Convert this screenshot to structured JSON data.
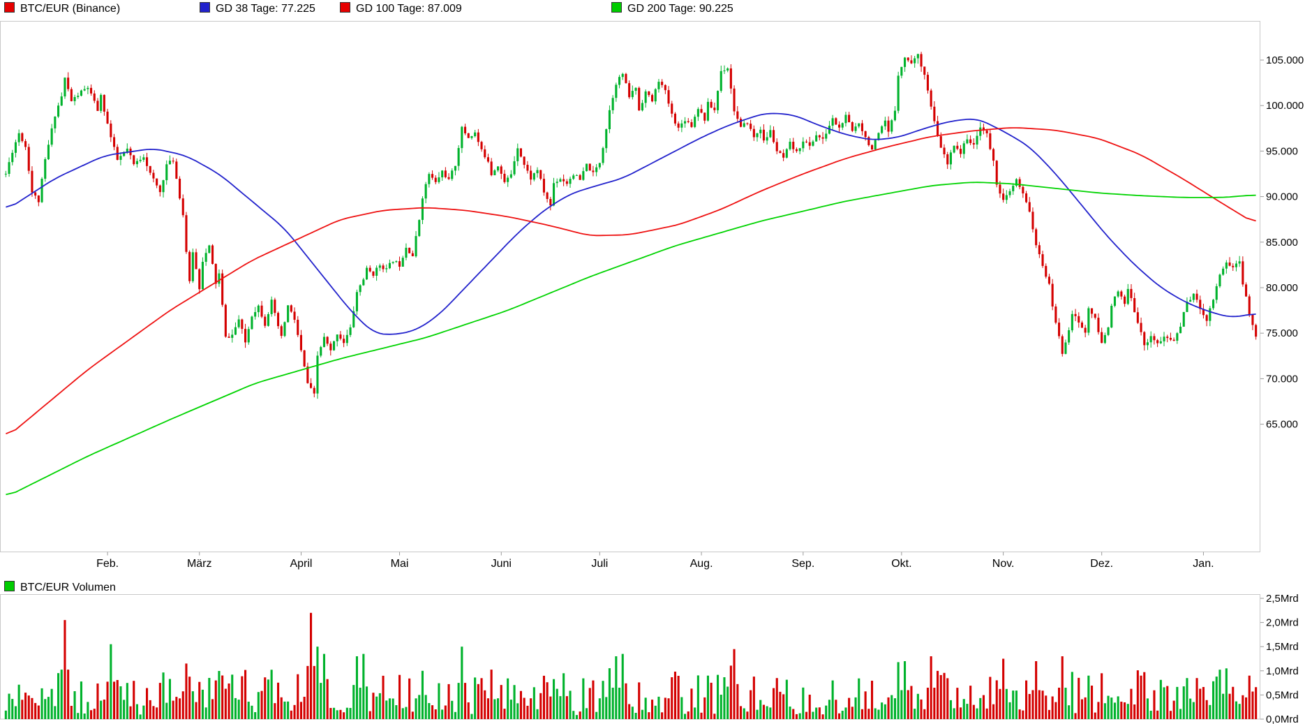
{
  "legend": {
    "items": [
      {
        "label": "BTC/EUR (Binance)",
        "swatch": "#e60000"
      },
      {
        "label": "GD 38 Tage: 77.225",
        "swatch": "#2222cc"
      },
      {
        "label": "GD 100 Tage: 87.009",
        "swatch": "#e60000"
      },
      {
        "label": "GD 200 Tage: 90.225",
        "swatch": "#00cc00"
      }
    ],
    "volume_label": "BTC/EUR Volumen",
    "volume_swatch": "#00cc00"
  },
  "chart_data": {
    "type": "candlestick",
    "title": "BTC/EUR (Binance)",
    "subtitle_mas": [
      "GD 38 Tage: 77.225",
      "GD 100 Tage: 87.009",
      "GD 200 Tage: 90.225"
    ],
    "price_unit_thousand_eur": true,
    "days_total": 382,
    "x_axis": {
      "month_labels": [
        "Feb.",
        "März",
        "April",
        "Mai",
        "Juni",
        "Juli",
        "Aug.",
        "Sep.",
        "Okt.",
        "Nov.",
        "Dez.",
        "Jan."
      ],
      "month_label_days": [
        31,
        59,
        90,
        120,
        151,
        181,
        212,
        243,
        273,
        304,
        334,
        365
      ]
    },
    "y_axis": {
      "tick_labels": [
        "105.000",
        "100.000",
        "95.000",
        "90.000",
        "85.000",
        "80.000",
        "75.000",
        "70.000",
        "65.000"
      ],
      "tick_values": [
        105,
        100,
        95,
        90,
        85,
        80,
        75,
        70,
        65
      ]
    },
    "price_path_anchors": [
      [
        0,
        92.5
      ],
      [
        2,
        95
      ],
      [
        4,
        97
      ],
      [
        6,
        95.5
      ],
      [
        8,
        90.5
      ],
      [
        10,
        89.5
      ],
      [
        12,
        94
      ],
      [
        15,
        99
      ],
      [
        17,
        101
      ],
      [
        18,
        103
      ],
      [
        20,
        100.5
      ],
      [
        23,
        101.5
      ],
      [
        25,
        102
      ],
      [
        28,
        99.5
      ],
      [
        29,
        101
      ],
      [
        32,
        96.5
      ],
      [
        34,
        94
      ],
      [
        37,
        95.2
      ],
      [
        39,
        93.5
      ],
      [
        42,
        94.5
      ],
      [
        44,
        92.5
      ],
      [
        47,
        90.5
      ],
      [
        49,
        93.5
      ],
      [
        51,
        94
      ],
      [
        52,
        92
      ],
      [
        54,
        88
      ],
      [
        55,
        84
      ],
      [
        56,
        80.5
      ],
      [
        57,
        84
      ],
      [
        59,
        80
      ],
      [
        60,
        83
      ],
      [
        62,
        84.5
      ],
      [
        64,
        80.5
      ],
      [
        65,
        81.5
      ],
      [
        67,
        74.5
      ],
      [
        69,
        74.8
      ],
      [
        71,
        76.5
      ],
      [
        73,
        74
      ],
      [
        75,
        77
      ],
      [
        77,
        78
      ],
      [
        79,
        76
      ],
      [
        81,
        78.5
      ],
      [
        82,
        77
      ],
      [
        84,
        74.5
      ],
      [
        86,
        78
      ],
      [
        88,
        76.5
      ],
      [
        90,
        73
      ],
      [
        92,
        69.5
      ],
      [
        93,
        68.8
      ],
      [
        94,
        68.2
      ],
      [
        95,
        72.5
      ],
      [
        97,
        74.5
      ],
      [
        99,
        73
      ],
      [
        101,
        75
      ],
      [
        103,
        74
      ],
      [
        105,
        75.5
      ],
      [
        107,
        79.5
      ],
      [
        109,
        81
      ],
      [
        110,
        82
      ],
      [
        112,
        81.5
      ],
      [
        114,
        82.5
      ],
      [
        116,
        82
      ],
      [
        118,
        83
      ],
      [
        120,
        82.5
      ],
      [
        122,
        84.5
      ],
      [
        124,
        83.5
      ],
      [
        126,
        87.5
      ],
      [
        127,
        90
      ],
      [
        129,
        92.5
      ],
      [
        131,
        91.5
      ],
      [
        133,
        92.8
      ],
      [
        135,
        91.8
      ],
      [
        137,
        93.5
      ],
      [
        139,
        97.5
      ],
      [
        141,
        96.5
      ],
      [
        143,
        97
      ],
      [
        145,
        95
      ],
      [
        147,
        94
      ],
      [
        148,
        92.5
      ],
      [
        150,
        93.5
      ],
      [
        152,
        91.5
      ],
      [
        154,
        92.5
      ],
      [
        156,
        95.5
      ],
      [
        158,
        93.5
      ],
      [
        160,
        92
      ],
      [
        162,
        93
      ],
      [
        164,
        90.5
      ],
      [
        166,
        89
      ],
      [
        167,
        91.5
      ],
      [
        169,
        92
      ],
      [
        171,
        91.5
      ],
      [
        173,
        92.5
      ],
      [
        175,
        91.8
      ],
      [
        177,
        93.5
      ],
      [
        179,
        92.5
      ],
      [
        181,
        93.8
      ],
      [
        182,
        95.5
      ],
      [
        184,
        99.5
      ],
      [
        186,
        102.5
      ],
      [
        188,
        103.5
      ],
      [
        190,
        101
      ],
      [
        192,
        102
      ],
      [
        193,
        99.5
      ],
      [
        195,
        101.5
      ],
      [
        197,
        100.5
      ],
      [
        199,
        102.8
      ],
      [
        201,
        101.5
      ],
      [
        203,
        99
      ],
      [
        205,
        97.5
      ],
      [
        207,
        98.5
      ],
      [
        209,
        97.8
      ],
      [
        211,
        99.8
      ],
      [
        213,
        98.5
      ],
      [
        214,
        100.2
      ],
      [
        216,
        99.5
      ],
      [
        218,
        103.8
      ],
      [
        220,
        104.2
      ],
      [
        222,
        99.5
      ],
      [
        224,
        97.5
      ],
      [
        226,
        98.2
      ],
      [
        228,
        96.5
      ],
      [
        230,
        97.5
      ],
      [
        231,
        96
      ],
      [
        233,
        97.2
      ],
      [
        235,
        95
      ],
      [
        237,
        94.2
      ],
      [
        239,
        95.8
      ],
      [
        241,
        94.8
      ],
      [
        243,
        96.2
      ],
      [
        245,
        95.5
      ],
      [
        247,
        96.8
      ],
      [
        249,
        96.2
      ],
      [
        251,
        97.8
      ],
      [
        252,
        98.5
      ],
      [
        254,
        97.5
      ],
      [
        256,
        98.8
      ],
      [
        258,
        97.2
      ],
      [
        260,
        98.2
      ],
      [
        262,
        96.5
      ],
      [
        264,
        95.2
      ],
      [
        266,
        96.8
      ],
      [
        268,
        98.2
      ],
      [
        269,
        97
      ],
      [
        271,
        99.5
      ],
      [
        272,
        103.5
      ],
      [
        274,
        105.2
      ],
      [
        276,
        104.8
      ],
      [
        278,
        105.5
      ],
      [
        280,
        103.5
      ],
      [
        282,
        99.8
      ],
      [
        284,
        96.5
      ],
      [
        286,
        94.5
      ],
      [
        287,
        93.5
      ],
      [
        289,
        95.8
      ],
      [
        291,
        94.8
      ],
      [
        293,
        96.5
      ],
      [
        295,
        95.5
      ],
      [
        297,
        97.8
      ],
      [
        299,
        96.8
      ],
      [
        301,
        93.8
      ],
      [
        302,
        91.5
      ],
      [
        304,
        89.5
      ],
      [
        306,
        90.5
      ],
      [
        308,
        91.8
      ],
      [
        310,
        90.2
      ],
      [
        312,
        88.5
      ],
      [
        314,
        84.5
      ],
      [
        316,
        82.5
      ],
      [
        318,
        80.2
      ],
      [
        319,
        78
      ],
      [
        321,
        74.5
      ],
      [
        322,
        72.8
      ],
      [
        324,
        75.5
      ],
      [
        325,
        77.2
      ],
      [
        327,
        76.2
      ],
      [
        329,
        75
      ],
      [
        330,
        77.8
      ],
      [
        332,
        76.5
      ],
      [
        334,
        73.8
      ],
      [
        336,
        75.8
      ],
      [
        337,
        78.2
      ],
      [
        339,
        79.5
      ],
      [
        341,
        78.2
      ],
      [
        342,
        79.8
      ],
      [
        344,
        77.5
      ],
      [
        346,
        75.2
      ],
      [
        347,
        73.5
      ],
      [
        349,
        74.8
      ],
      [
        351,
        73.8
      ],
      [
        353,
        74.5
      ],
      [
        356,
        74.2
      ],
      [
        358,
        75.8
      ],
      [
        360,
        78.5
      ],
      [
        362,
        79.2
      ],
      [
        364,
        77.8
      ],
      [
        366,
        76.5
      ],
      [
        368,
        78.8
      ],
      [
        370,
        81.5
      ],
      [
        372,
        82.8
      ],
      [
        374,
        82.2
      ],
      [
        376,
        83
      ],
      [
        377,
        80.5
      ],
      [
        379,
        77.2
      ],
      [
        380,
        75.8
      ],
      [
        381,
        74.8
      ]
    ],
    "candle_noise": {
      "seed": 11,
      "body": 0.45,
      "wick": 0.6
    },
    "moving_averages": [
      {
        "name": "GD 38 Tage",
        "value_label": "77.225",
        "color_key": "ma38",
        "points": [
          [
            0,
            88.5
          ],
          [
            15,
            92
          ],
          [
            30,
            94.5
          ],
          [
            45,
            95.3
          ],
          [
            55,
            94.5
          ],
          [
            65,
            92.5
          ],
          [
            75,
            89.5
          ],
          [
            85,
            86.5
          ],
          [
            95,
            82
          ],
          [
            105,
            77.5
          ],
          [
            112,
            75
          ],
          [
            118,
            74.8
          ],
          [
            125,
            75.3
          ],
          [
            132,
            77
          ],
          [
            140,
            80
          ],
          [
            148,
            83
          ],
          [
            156,
            86
          ],
          [
            164,
            88.5
          ],
          [
            172,
            90.3
          ],
          [
            180,
            91.2
          ],
          [
            188,
            92
          ],
          [
            196,
            93.5
          ],
          [
            204,
            95
          ],
          [
            212,
            96.5
          ],
          [
            220,
            97.8
          ],
          [
            228,
            98.8
          ],
          [
            232,
            99.2
          ],
          [
            240,
            99
          ],
          [
            248,
            97.8
          ],
          [
            256,
            96.8
          ],
          [
            264,
            96.2
          ],
          [
            272,
            96.5
          ],
          [
            280,
            97.5
          ],
          [
            288,
            98.3
          ],
          [
            296,
            98.6
          ],
          [
            304,
            97.2
          ],
          [
            312,
            95.5
          ],
          [
            320,
            92.5
          ],
          [
            328,
            89
          ],
          [
            336,
            85.5
          ],
          [
            344,
            82.5
          ],
          [
            352,
            80
          ],
          [
            360,
            78.3
          ],
          [
            368,
            77.2
          ],
          [
            374,
            76.7
          ],
          [
            381,
            77.2
          ]
        ]
      },
      {
        "name": "GD 100 Tage",
        "value_label": "87.009",
        "color_key": "ma100",
        "points": [
          [
            0,
            63.5
          ],
          [
            25,
            71
          ],
          [
            50,
            77.5
          ],
          [
            75,
            83
          ],
          [
            90,
            85.5
          ],
          [
            102,
            87.5
          ],
          [
            115,
            88.5
          ],
          [
            128,
            88.8
          ],
          [
            140,
            88.5
          ],
          [
            153,
            87.8
          ],
          [
            166,
            86.8
          ],
          [
            178,
            85.7
          ],
          [
            190,
            85.8
          ],
          [
            205,
            86.9
          ],
          [
            218,
            88.6
          ],
          [
            230,
            90.6
          ],
          [
            243,
            92.5
          ],
          [
            256,
            94.2
          ],
          [
            269,
            95.5
          ],
          [
            282,
            96.6
          ],
          [
            294,
            97.2
          ],
          [
            307,
            97.6
          ],
          [
            320,
            97.3
          ],
          [
            333,
            96.4
          ],
          [
            346,
            94.6
          ],
          [
            359,
            91.9
          ],
          [
            371,
            89.2
          ],
          [
            381,
            87.0
          ]
        ]
      },
      {
        "name": "GD 200 Tage",
        "value_label": "90.225",
        "color_key": "ma200",
        "points": [
          [
            0,
            57
          ],
          [
            25,
            61.5
          ],
          [
            50,
            65.5
          ],
          [
            76,
            69.5
          ],
          [
            102,
            72.2
          ],
          [
            128,
            74.5
          ],
          [
            153,
            77.5
          ],
          [
            178,
            81.2
          ],
          [
            204,
            84.6
          ],
          [
            230,
            87.3
          ],
          [
            256,
            89.5
          ],
          [
            282,
            91.2
          ],
          [
            295,
            91.6
          ],
          [
            307,
            91.4
          ],
          [
            320,
            90.9
          ],
          [
            333,
            90.4
          ],
          [
            346,
            90.1
          ],
          [
            359,
            89.9
          ],
          [
            371,
            89.9
          ],
          [
            381,
            90.2
          ]
        ]
      }
    ],
    "volume_panel": {
      "title": "BTC/EUR Volumen",
      "unit": "Mrd",
      "y_labels": [
        "2,5Mrd",
        "2,0Mrd",
        "1,5Mrd",
        "1,0Mrd",
        "0,5Mrd",
        "0,0Mrd"
      ],
      "y_values": [
        2.5,
        2.0,
        1.5,
        1.0,
        0.5,
        0.0
      ],
      "base_noise": {
        "min": 0.07,
        "scale": 0.8
      },
      "spikes": [
        [
          18,
          2.05,
          "down"
        ],
        [
          32,
          1.55,
          "up"
        ],
        [
          55,
          1.15,
          "down"
        ],
        [
          93,
          2.2,
          "down"
        ],
        [
          95,
          1.5,
          "up"
        ],
        [
          97,
          1.35,
          "up"
        ],
        [
          107,
          1.3,
          "up"
        ],
        [
          109,
          1.35,
          "up"
        ],
        [
          127,
          1.0,
          "up"
        ],
        [
          139,
          1.5,
          "up"
        ],
        [
          170,
          0.95,
          "up"
        ],
        [
          186,
          1.3,
          "up"
        ],
        [
          188,
          1.35,
          "up"
        ],
        [
          214,
          0.9,
          "up"
        ],
        [
          222,
          1.45,
          "down"
        ],
        [
          235,
          0.85,
          "down"
        ],
        [
          252,
          0.8,
          "up"
        ],
        [
          274,
          1.2,
          "up"
        ],
        [
          282,
          1.3,
          "down"
        ],
        [
          304,
          1.25,
          "down"
        ],
        [
          314,
          1.2,
          "down"
        ],
        [
          322,
          1.3,
          "down"
        ],
        [
          330,
          0.9,
          "up"
        ],
        [
          346,
          0.9,
          "down"
        ],
        [
          360,
          0.85,
          "up"
        ],
        [
          372,
          1.05,
          "up"
        ],
        [
          379,
          0.9,
          "down"
        ]
      ]
    },
    "colors": {
      "up": "#00b22c",
      "down": "#d40000",
      "ma38": "#2222cc",
      "ma100": "#ee1111",
      "ma200": "#00d300",
      "frame": "#c8c8c8",
      "axis": "#999999",
      "text": "#000000"
    }
  }
}
